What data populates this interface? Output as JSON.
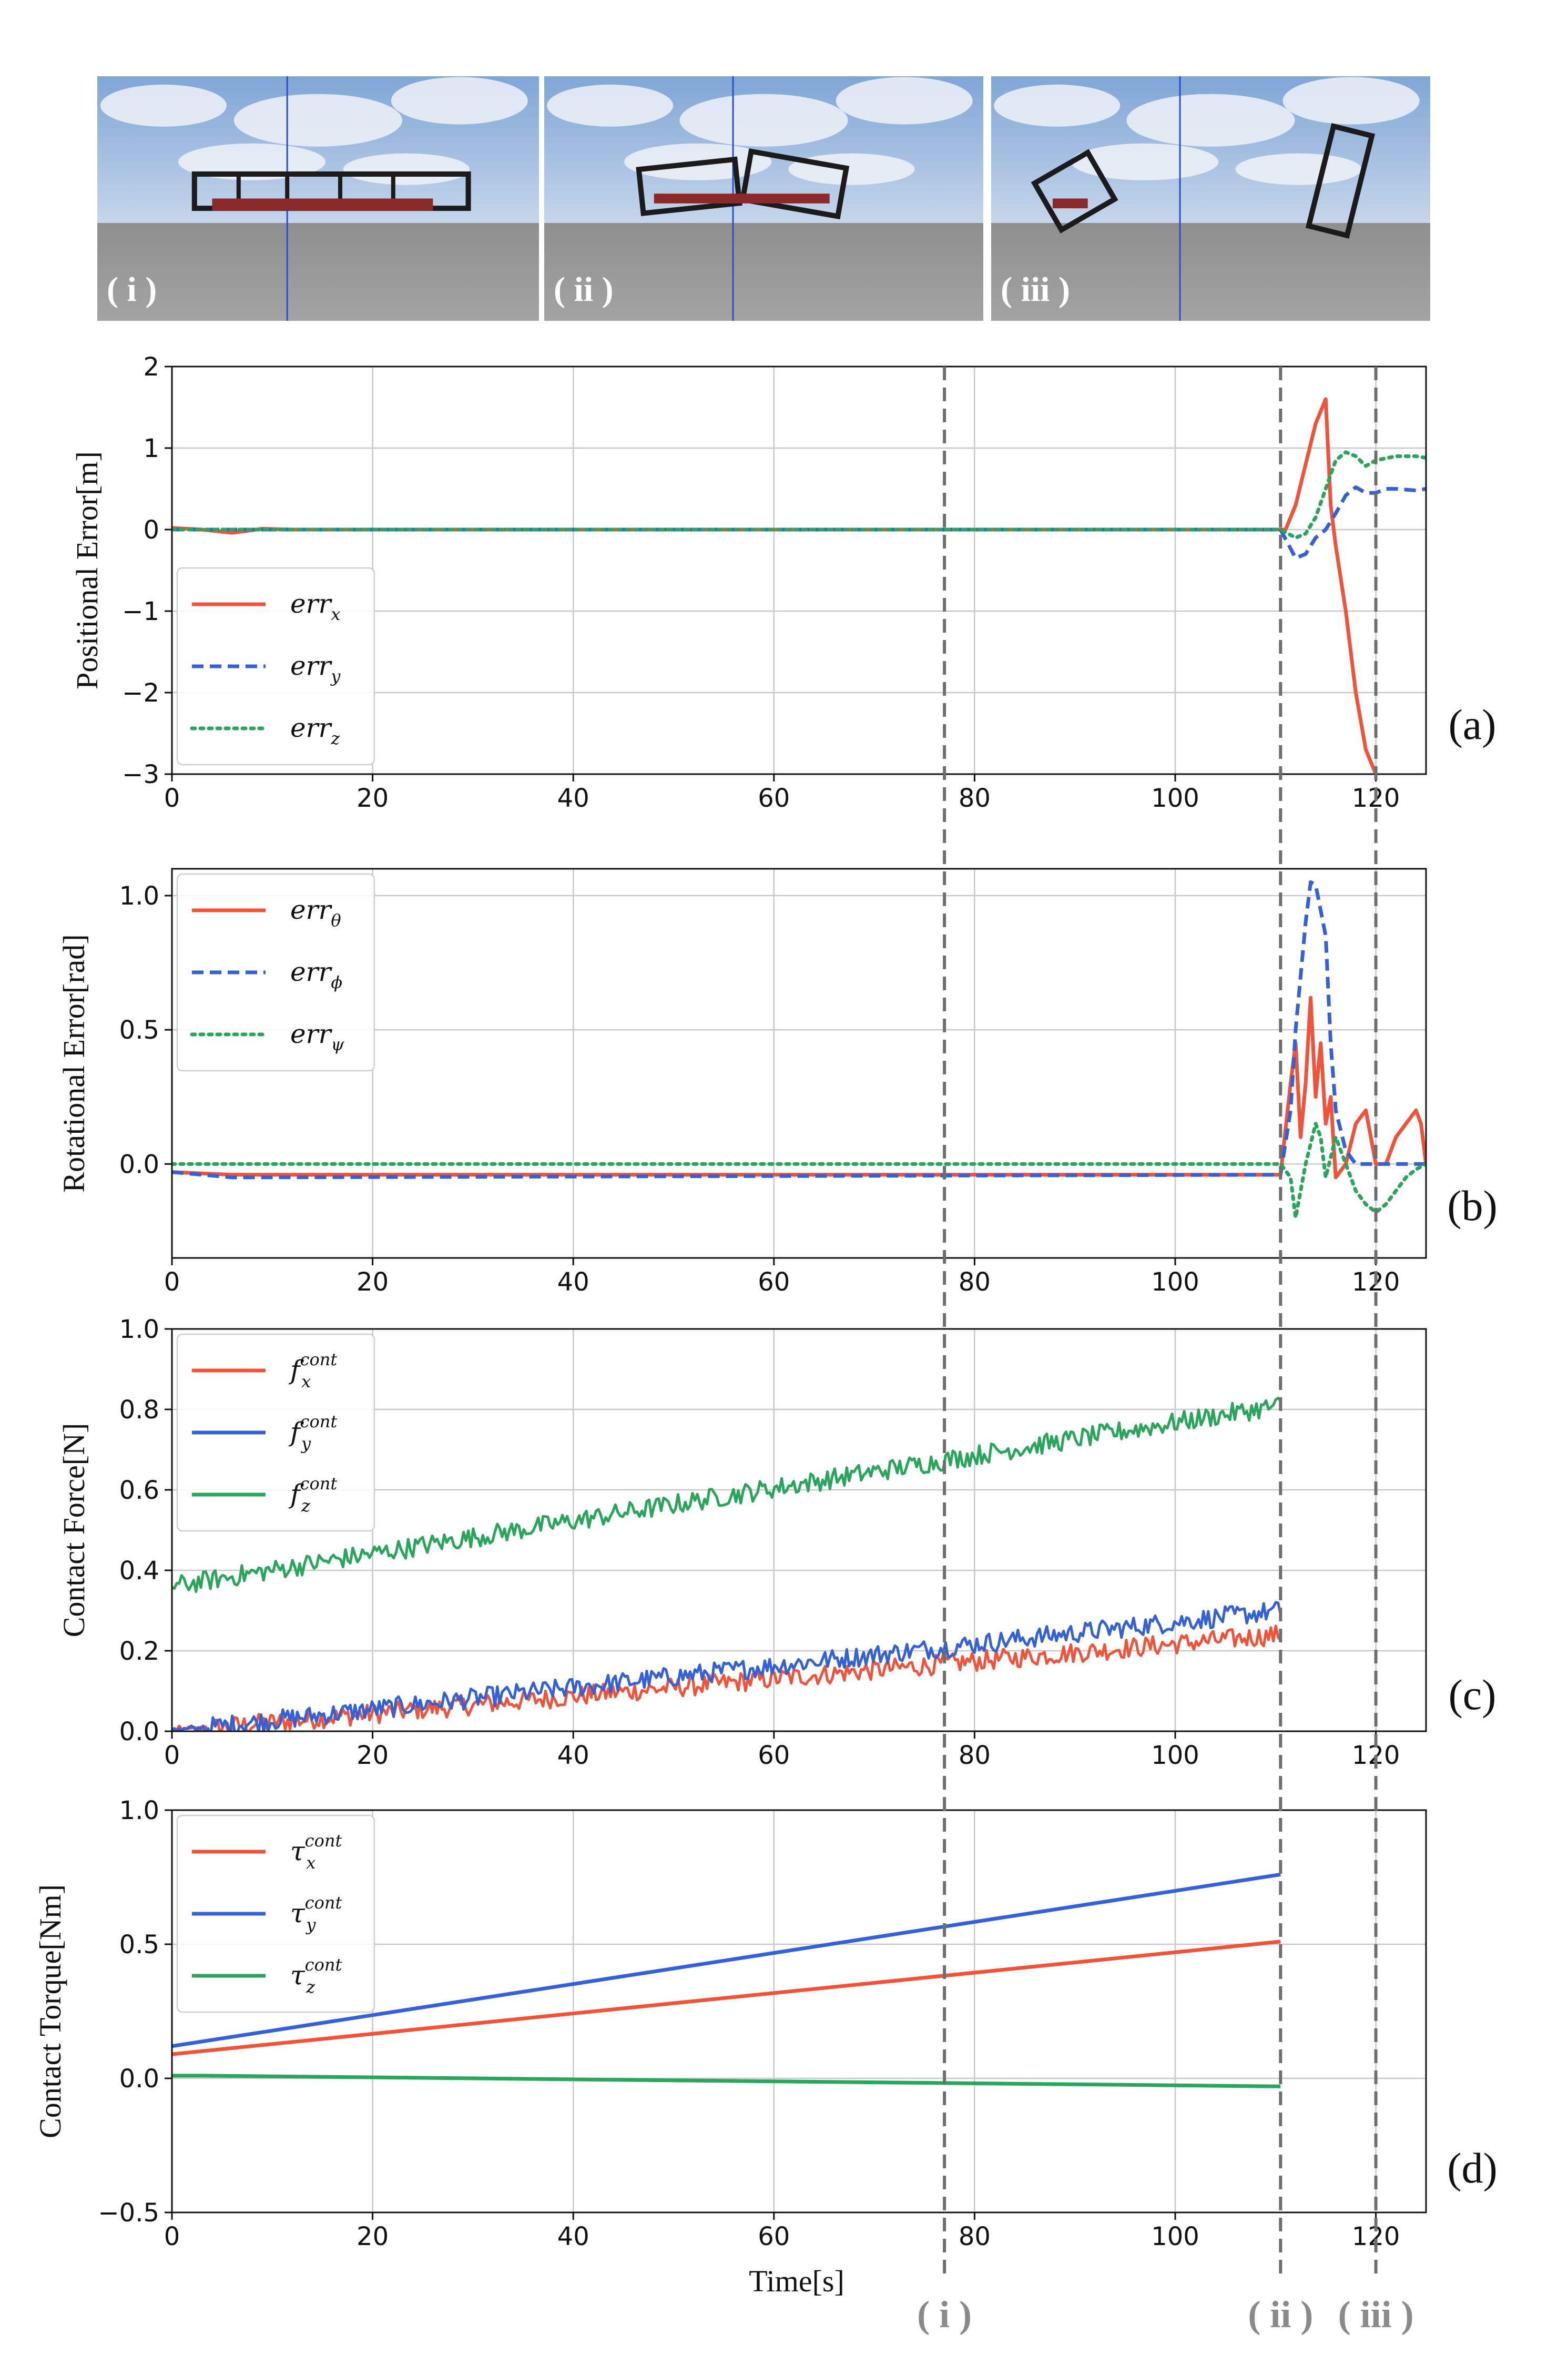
{
  "snapshots": [
    {
      "label": "( i )",
      "description_icon": "two-module-robot-icon"
    },
    {
      "label": "( ii )",
      "description_icon": "bent-robot-icon"
    },
    {
      "label": "( iii )",
      "description_icon": "falling-robot-icon"
    }
  ],
  "events": [
    {
      "label": "( i )",
      "t": 77
    },
    {
      "label": "( ii )",
      "t": 110.5
    },
    {
      "label": "( iii )",
      "t": 120
    }
  ],
  "colors": {
    "red": "#f0533a",
    "blue": "#3561d6",
    "green": "#2aa55c",
    "grid": "#c8c8c8",
    "event": "#6e6e6e"
  },
  "chart_data": [
    {
      "type": "line",
      "panel": "(a)",
      "ylabel": "Positional Error[m]",
      "xlabel": "",
      "xlim": [
        0,
        125
      ],
      "ylim": [
        -3,
        2
      ],
      "xticks": [
        0,
        20,
        40,
        60,
        80,
        100,
        120
      ],
      "yticks": [
        -3,
        -2,
        -1,
        0,
        1,
        2
      ],
      "legend": {
        "position": "lower-left",
        "entries": [
          {
            "base": "err",
            "sub": "x",
            "style": "solid",
            "color": "red"
          },
          {
            "base": "err",
            "sub": "y",
            "style": "dashed",
            "color": "blue"
          },
          {
            "base": "err",
            "sub": "z",
            "style": "dotted",
            "color": "green"
          }
        ]
      },
      "series": [
        {
          "name": "err_x",
          "color": "red",
          "style": "solid",
          "points": [
            [
              0,
              0.02
            ],
            [
              3,
              0
            ],
            [
              6,
              -0.04
            ],
            [
              9,
              0.01
            ],
            [
              12,
              0
            ],
            [
              111,
              0
            ],
            [
              112,
              0.3
            ],
            [
              113,
              0.8
            ],
            [
              114,
              1.3
            ],
            [
              115,
              1.6
            ],
            [
              115.5,
              0.3
            ],
            [
              116,
              -0.2
            ],
            [
              117,
              -1.0
            ],
            [
              118,
              -2.0
            ],
            [
              119,
              -2.7
            ],
            [
              120,
              -3
            ]
          ]
        },
        {
          "name": "err_y",
          "color": "blue",
          "style": "dashed",
          "points": [
            [
              0,
              0
            ],
            [
              110.5,
              0
            ],
            [
              112,
              -0.35
            ],
            [
              113,
              -0.3
            ],
            [
              114,
              -0.1
            ],
            [
              115,
              0
            ],
            [
              116,
              0.2
            ],
            [
              117,
              0.42
            ],
            [
              118,
              0.52
            ],
            [
              119,
              0.45
            ],
            [
              120,
              0.45
            ],
            [
              121,
              0.5
            ],
            [
              122,
              0.5
            ],
            [
              124,
              0.48
            ],
            [
              125,
              0.5
            ]
          ]
        },
        {
          "name": "err_z",
          "color": "green",
          "style": "dotted",
          "points": [
            [
              0,
              0
            ],
            [
              110.5,
              0
            ],
            [
              112,
              -0.1
            ],
            [
              113,
              -0.05
            ],
            [
              114,
              0.15
            ],
            [
              115,
              0.5
            ],
            [
              116,
              0.85
            ],
            [
              117,
              0.95
            ],
            [
              118,
              0.9
            ],
            [
              119,
              0.78
            ],
            [
              120,
              0.85
            ],
            [
              122,
              0.9
            ],
            [
              124,
              0.9
            ],
            [
              125,
              0.88
            ]
          ]
        }
      ]
    },
    {
      "type": "line",
      "panel": "(b)",
      "ylabel": "Rotational Error[rad]",
      "xlabel": "",
      "xlim": [
        0,
        125
      ],
      "ylim": [
        -0.35,
        1.1
      ],
      "xticks": [
        0,
        20,
        40,
        60,
        80,
        100,
        120
      ],
      "yticks": [
        0.0,
        0.5,
        1.0
      ],
      "yticklabels": [
        "0.0",
        "0.5",
        "1.0"
      ],
      "legend": {
        "position": "upper-left",
        "entries": [
          {
            "base": "err",
            "sub": "θ",
            "style": "solid",
            "color": "red"
          },
          {
            "base": "err",
            "sub": "ϕ",
            "style": "dashed",
            "color": "blue"
          },
          {
            "base": "err",
            "sub": "ψ",
            "style": "dotted",
            "color": "green"
          }
        ]
      },
      "series": [
        {
          "name": "err_theta",
          "color": "red",
          "style": "solid",
          "points": [
            [
              0,
              -0.03
            ],
            [
              6,
              -0.04
            ],
            [
              110.5,
              -0.04
            ],
            [
              111.5,
              0.3
            ],
            [
              112,
              0.45
            ],
            [
              112.5,
              0.1
            ],
            [
              113,
              0.3
            ],
            [
              113.5,
              0.62
            ],
            [
              114,
              0.25
            ],
            [
              114.5,
              0.45
            ],
            [
              115,
              0.15
            ],
            [
              115.5,
              0.25
            ],
            [
              116,
              -0.05
            ],
            [
              117,
              0
            ],
            [
              118,
              0.15
            ],
            [
              119,
              0.2
            ],
            [
              120,
              0
            ],
            [
              121,
              0
            ],
            [
              122,
              0.1
            ],
            [
              123,
              0.15
            ],
            [
              124,
              0.2
            ],
            [
              124.5,
              0.15
            ],
            [
              125,
              0
            ]
          ]
        },
        {
          "name": "err_phi",
          "color": "blue",
          "style": "dashed",
          "points": [
            [
              0,
              -0.03
            ],
            [
              6,
              -0.05
            ],
            [
              110.5,
              -0.04
            ],
            [
              111.5,
              0.2
            ],
            [
              112,
              0.5
            ],
            [
              112.5,
              0.7
            ],
            [
              113,
              0.9
            ],
            [
              113.5,
              1.05
            ],
            [
              114,
              1.04
            ],
            [
              115,
              0.85
            ],
            [
              115.5,
              0.45
            ],
            [
              116,
              0.2
            ],
            [
              117,
              0.05
            ],
            [
              118,
              0
            ],
            [
              119,
              0
            ],
            [
              120,
              0
            ],
            [
              122,
              0
            ],
            [
              125,
              0
            ]
          ]
        },
        {
          "name": "err_psi",
          "color": "green",
          "style": "dotted",
          "points": [
            [
              0,
              0
            ],
            [
              110.5,
              0
            ],
            [
              111.5,
              -0.05
            ],
            [
              112,
              -0.2
            ],
            [
              112.5,
              -0.1
            ],
            [
              113,
              0
            ],
            [
              114,
              0.15
            ],
            [
              114.5,
              0.1
            ],
            [
              115,
              -0.05
            ],
            [
              116,
              0.1
            ],
            [
              117,
              0
            ],
            [
              118,
              -0.1
            ],
            [
              119,
              -0.15
            ],
            [
              120,
              -0.18
            ],
            [
              121,
              -0.15
            ],
            [
              122,
              -0.1
            ],
            [
              123,
              -0.05
            ],
            [
              124,
              -0.02
            ],
            [
              125,
              0
            ]
          ]
        }
      ]
    },
    {
      "type": "line",
      "panel": "(c)",
      "ylabel": "Contact Force[N]",
      "xlabel": "",
      "xlim": [
        0,
        125
      ],
      "ylim": [
        0,
        1.0
      ],
      "xticks": [
        0,
        20,
        40,
        60,
        80,
        100,
        120
      ],
      "yticks": [
        0.0,
        0.2,
        0.4,
        0.6,
        0.8,
        1.0
      ],
      "yticklabels": [
        "0.0",
        "0.2",
        "0.4",
        "0.6",
        "0.8",
        "1.0"
      ],
      "legend": {
        "position": "upper-left",
        "entries": [
          {
            "base": "f",
            "sub": "x",
            "sup": "cont",
            "style": "solid",
            "color": "red"
          },
          {
            "base": "f",
            "sub": "y",
            "sup": "cont",
            "style": "solid",
            "color": "blue"
          },
          {
            "base": "f",
            "sub": "z",
            "sup": "cont",
            "style": "solid",
            "color": "green"
          }
        ]
      },
      "series": [
        {
          "name": "f_x_cont",
          "color": "red",
          "style": "solid",
          "noisy": true,
          "start": [
            0,
            0.0
          ],
          "end": [
            110.5,
            0.24
          ],
          "noise": 0.025
        },
        {
          "name": "f_y_cont",
          "color": "blue",
          "style": "solid",
          "noisy": true,
          "start": [
            0,
            0.0
          ],
          "end": [
            110.5,
            0.3
          ],
          "noise": 0.025
        },
        {
          "name": "f_z_cont",
          "color": "green",
          "style": "solid",
          "noisy": true,
          "start": [
            0,
            0.36
          ],
          "end": [
            110.5,
            0.81
          ],
          "noise": 0.025
        }
      ]
    },
    {
      "type": "line",
      "panel": "(d)",
      "ylabel": "Contact Torque[Nm]",
      "xlabel": "Time[s]",
      "xlim": [
        0,
        125
      ],
      "ylim": [
        -0.5,
        1.0
      ],
      "xticks": [
        0,
        20,
        40,
        60,
        80,
        100,
        120
      ],
      "yticks": [
        -0.5,
        0.0,
        0.5,
        1.0
      ],
      "yticklabels": [
        "−0.5",
        "0.0",
        "0.5",
        "1.0"
      ],
      "legend": {
        "position": "upper-left",
        "entries": [
          {
            "base": "τ",
            "sub": "x",
            "sup": "cont",
            "style": "solid",
            "color": "red"
          },
          {
            "base": "τ",
            "sub": "y",
            "sup": "cont",
            "style": "solid",
            "color": "blue"
          },
          {
            "base": "τ",
            "sub": "z",
            "sup": "cont",
            "style": "solid",
            "color": "green"
          }
        ]
      },
      "series": [
        {
          "name": "tau_x_cont",
          "color": "red",
          "style": "solid",
          "points": [
            [
              0,
              0.09
            ],
            [
              110.5,
              0.51
            ]
          ]
        },
        {
          "name": "tau_y_cont",
          "color": "blue",
          "style": "solid",
          "points": [
            [
              0,
              0.12
            ],
            [
              110.5,
              0.76
            ]
          ]
        },
        {
          "name": "tau_z_cont",
          "color": "green",
          "style": "solid",
          "points": [
            [
              0,
              0.01
            ],
            [
              3,
              0.01
            ],
            [
              110.5,
              -0.03
            ]
          ]
        }
      ]
    }
  ]
}
